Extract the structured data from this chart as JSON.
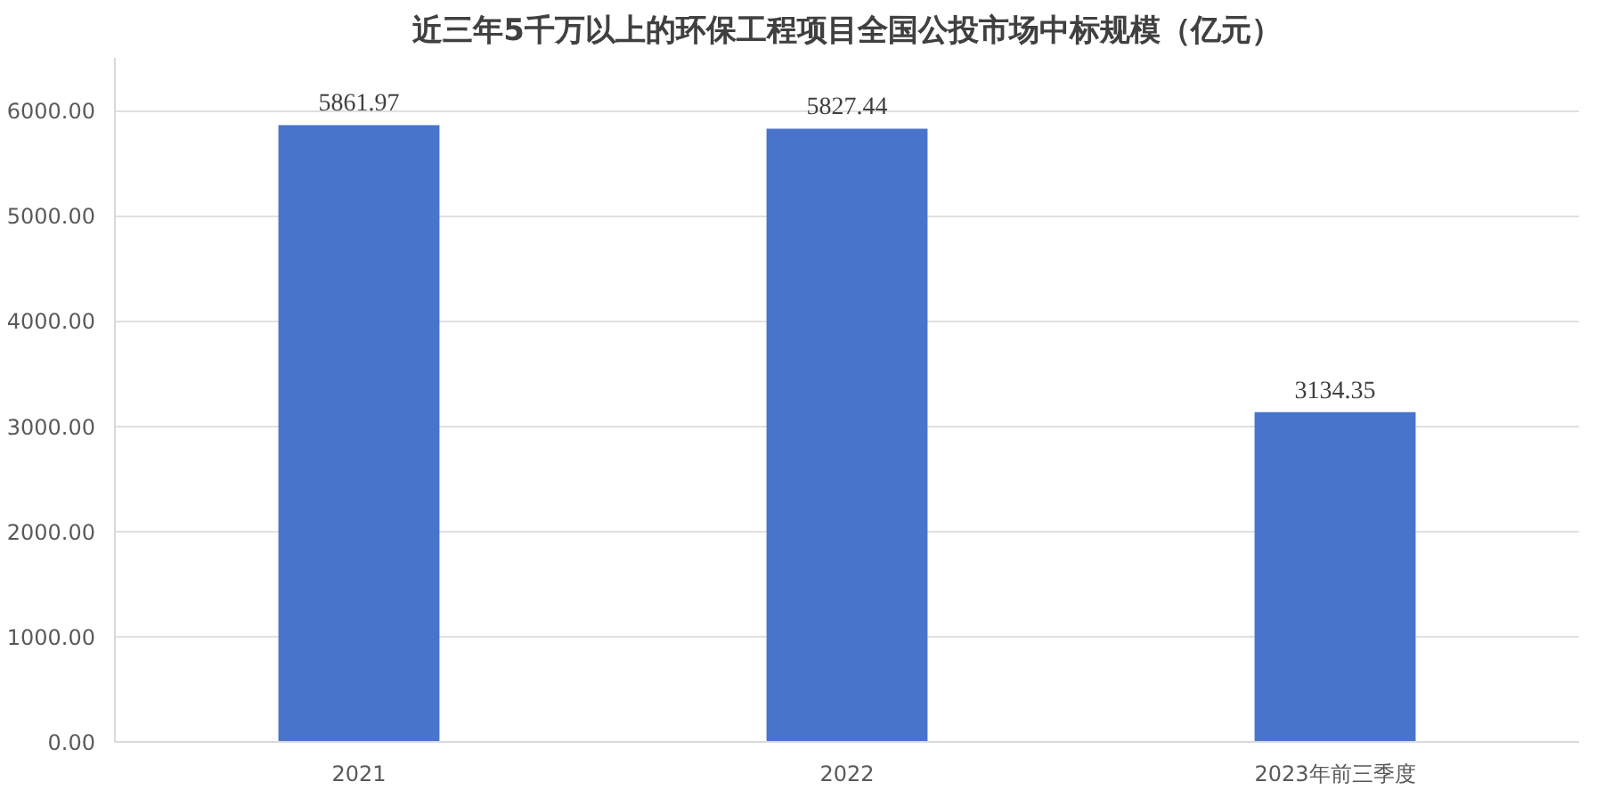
{
  "chart_data": {
    "type": "bar",
    "title": "近三年5千万以上的环保工程项目全国公投市场中标规模（亿元）",
    "categories": [
      "2021",
      "2022",
      "2023年前三季度"
    ],
    "values": [
      5861.97,
      5827.44,
      3134.35
    ],
    "color": "#4874cb",
    "ylim": [
      0,
      6500
    ],
    "yticks": [
      {
        "value": 0,
        "label": "0.00"
      },
      {
        "value": 1000,
        "label": "1000.00"
      },
      {
        "value": 2000,
        "label": "2000.00"
      },
      {
        "value": 3000,
        "label": "3000.00"
      },
      {
        "value": 4000,
        "label": "4000.00"
      },
      {
        "value": 5000,
        "label": "5000.00"
      },
      {
        "value": 6000,
        "label": "6000.00"
      }
    ],
    "grid": "y",
    "data_labels": true
  }
}
